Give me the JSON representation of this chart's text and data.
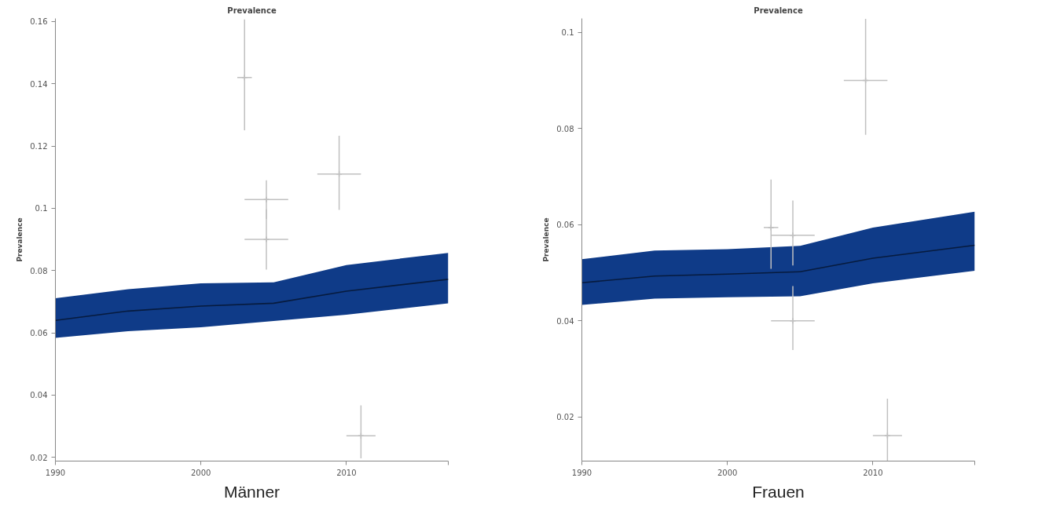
{
  "chart_data": [
    {
      "type": "line",
      "title": "Prevalence",
      "ylabel": "Prevalence",
      "xlabel": "Männer",
      "x": [
        1990,
        1995,
        2000,
        2005,
        2010,
        2017
      ],
      "xlim": [
        1990,
        2017
      ],
      "xticks": [
        1990,
        2000,
        2010,
        {
          "value": 2017,
          "label": null
        }
      ],
      "ylim": [
        0.0188,
        0.161
      ],
      "yticks": [
        0.02,
        0.04,
        0.06,
        0.08,
        0.1,
        0.12,
        0.14,
        0.16
      ],
      "grid": false,
      "series": [
        {
          "color": "#071b3e",
          "values": [
            0.064,
            0.067,
            0.0686,
            0.0695,
            0.0734,
            0.0772
          ],
          "lower": [
            0.0584,
            0.0605,
            0.0618,
            0.0638,
            0.0658,
            0.0695
          ],
          "upper": [
            0.0711,
            0.074,
            0.0759,
            0.0762,
            0.0818,
            0.0857
          ]
        },
        {
          "type": "scatter",
          "marker": "cross",
          "color": "#c0c0c0",
          "x": [
            2003.0,
            2004.5,
            2004.5,
            2009.5,
            2011.0
          ],
          "values": [
            0.142,
            0.1028,
            0.09,
            0.111,
            0.0269
          ],
          "errors": [
            [
              0.1251,
              0.1607
            ],
            [
              0.0966,
              0.109
            ],
            [
              0.0803,
              0.0997
            ],
            [
              0.0995,
              0.1233
            ],
            [
              0.0197,
              0.0367
            ]
          ],
          "xerrors": [
            [
              2002.5,
              2003.5
            ],
            [
              2003.0,
              2006.0
            ],
            [
              2003.0,
              2006.0
            ],
            [
              2008.0,
              2011.0
            ],
            [
              2010.0,
              2012.0
            ]
          ]
        }
      ]
    },
    {
      "type": "line",
      "title": "Prevalence",
      "ylabel": "Prevalence",
      "xlabel": "Frauen",
      "x": [
        1990,
        1995,
        2000,
        2005,
        2010,
        2017
      ],
      "xlim": [
        1990,
        2017
      ],
      "xticks": [
        1990,
        2000,
        2010,
        {
          "value": 2017,
          "label": null
        }
      ],
      "ylim": [
        0.0108,
        0.1029
      ],
      "yticks": [
        0.02,
        0.04,
        0.06,
        0.08,
        0.1
      ],
      "grid": false,
      "series": [
        {
          "color": "#071b3e",
          "values": [
            0.0479,
            0.0493,
            0.0497,
            0.0502,
            0.053,
            0.0557
          ],
          "lower": [
            0.0433,
            0.0446,
            0.0449,
            0.0451,
            0.0478,
            0.0504
          ],
          "upper": [
            0.0528,
            0.0546,
            0.0549,
            0.0556,
            0.0594,
            0.0627
          ]
        },
        {
          "type": "scatter",
          "marker": "cross",
          "color": "#c0c0c0",
          "x": [
            2003.0,
            2004.5,
            2004.5,
            2009.5,
            2011.0
          ],
          "values": [
            0.0594,
            0.0578,
            0.04,
            0.09,
            0.0161
          ],
          "errors": [
            [
              0.0508,
              0.0694
            ],
            [
              0.0515,
              0.065
            ],
            [
              0.0339,
              0.0472
            ],
            [
              0.0787,
              0.1028
            ],
            [
              0.0108,
              0.0238
            ]
          ],
          "xerrors": [
            [
              2002.5,
              2003.5
            ],
            [
              2003.0,
              2006.0
            ],
            [
              2003.0,
              2006.0
            ],
            [
              2008.0,
              2011.0
            ],
            [
              2010.0,
              2012.0
            ]
          ]
        }
      ]
    }
  ]
}
